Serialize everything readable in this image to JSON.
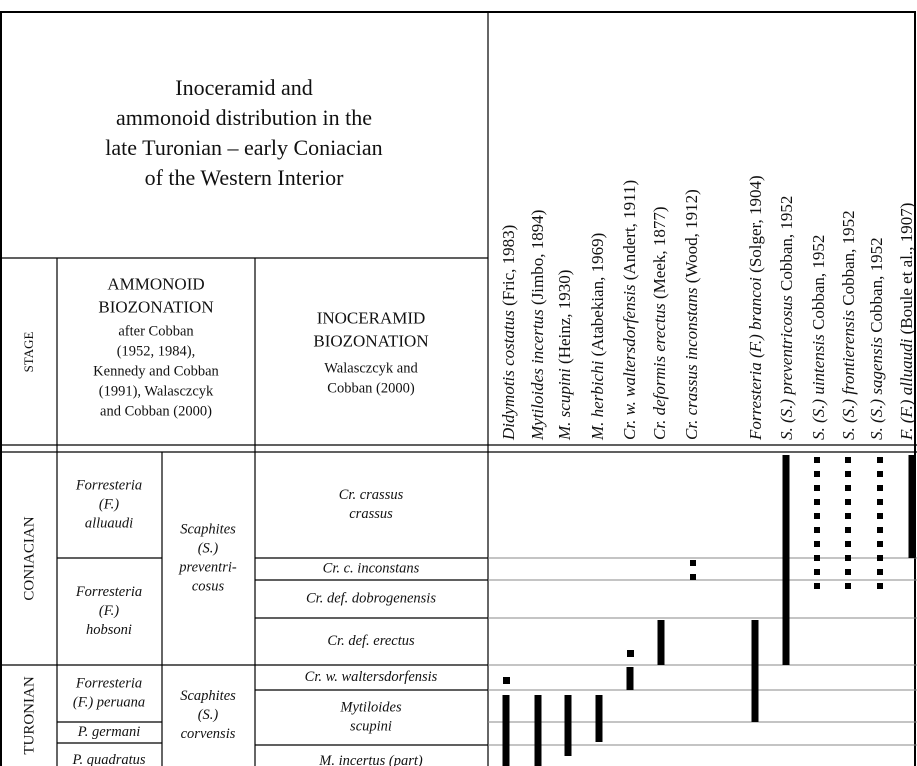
{
  "title_lines": [
    "Inoceramid and",
    "ammonoid distribution in the",
    "late Turonian – early Coniacian",
    "of the Western Interior"
  ],
  "headers": {
    "stage": "STAGE",
    "ammonoid": {
      "lines": [
        "AMMONOID",
        "BIOZONATION"
      ],
      "note_lines": [
        "after Cobban",
        "(1952, 1984),",
        "Kennedy and Cobban",
        "(1991), Walasczcyk",
        "and Cobban (2000)"
      ]
    },
    "inoceramid": {
      "lines": [
        "INOCERAMID",
        "BIOZONATION"
      ],
      "note_lines": [
        "Walasczcyk and",
        "Cobban (2000)"
      ]
    }
  },
  "stages": [
    "CONIACIAN",
    "TURONIAN"
  ],
  "ammonoid_zones": [
    [
      "Forresteria",
      "(F.)",
      "alluaudi"
    ],
    [
      "Forresteria",
      "(F.)",
      "hobsoni"
    ],
    [
      "Forresteria",
      "(F.) peruana"
    ],
    [
      "P. germani"
    ],
    [
      "P. quadratus"
    ]
  ],
  "ammonoid_subzones": [
    [
      "Scaphites",
      "(S.)",
      "preventri-",
      "cosus"
    ],
    [
      "Scaphites",
      "(S.)",
      "corvensis"
    ]
  ],
  "inoceramid_zones": [
    [
      "Cr. crassus",
      "crassus"
    ],
    [
      "Cr. c. inconstans"
    ],
    [
      "Cr. def. dobrogenensis"
    ],
    [
      "Cr. def. erectus"
    ],
    [
      "Cr. w. waltersdorfensis"
    ],
    [
      "Mytiloides",
      "scupini"
    ],
    [
      "M. incertus (part)"
    ]
  ],
  "taxa": [
    {
      "name": "Didymotis costatus",
      "author": " (Fric, 1983)"
    },
    {
      "name": "Mytiloides incertus",
      "author": " (Jimbo, 1894)"
    },
    {
      "name": "M. scupini",
      "author": " (Heinz, 1930)"
    },
    {
      "name": "M. herbichi",
      "author": " (Atabekian, 1969)"
    },
    {
      "name": "Cr. w. waltersdorfensis",
      "author": " (Andert, 1911)"
    },
    {
      "name": "Cr. deformis erectus",
      "author": " (Meek, 1877)"
    },
    {
      "name": "Cr. crassus inconstans",
      "author": " (Wood, 1912)"
    },
    {
      "name": "Forresteria (F.) brancoi",
      "author": " (Solger, 1904)"
    },
    {
      "name": "S. (S.) preventricosus",
      "author": " Cobban, 1952"
    },
    {
      "name": "S. (S.) uintensis",
      "author": " Cobban, 1952"
    },
    {
      "name": "S. (S.) frontierensis",
      "author": " Cobban, 1952"
    },
    {
      "name": "S. (S.) sagensis",
      "author": " Cobban, 1952"
    },
    {
      "name": "F. (F.) alluaudi",
      "author": " (Boule et al., 1907)"
    }
  ]
}
